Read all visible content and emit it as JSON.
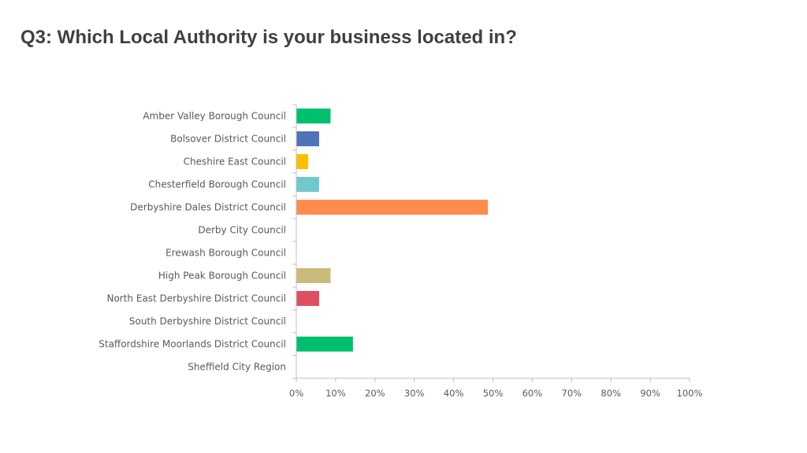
{
  "page": {
    "title": "Q3: Which Local Authority is your business located in?"
  },
  "chart_data": {
    "type": "bar",
    "orientation": "horizontal",
    "title": "",
    "xlabel": "",
    "ylabel": "",
    "xlim": [
      0,
      100
    ],
    "grid": false,
    "categories": [
      "Amber Valley Borough Council",
      "Bolsover District Council",
      "Cheshire East Council",
      "Chesterfield Borough Council",
      "Derbyshire Dales District Council",
      "Derby City Council",
      "Erewash Borough Council",
      "High Peak Borough Council",
      "North East Derbyshire District Council",
      "South Derbyshire District Council",
      "Staffordshire Moorlands District Council",
      "Sheffield City Region"
    ],
    "values": [
      8.6,
      5.7,
      2.9,
      5.7,
      48.6,
      0,
      0,
      8.6,
      5.7,
      0,
      14.3,
      0
    ],
    "colors": [
      "#00c070",
      "#4f75b8",
      "#ffbf00",
      "#70c8cc",
      "#ff8c4f",
      "#a5a5a5",
      "#a5a5a5",
      "#cabb7a",
      "#de4f62",
      "#a5a5a5",
      "#00c070",
      "#a5a5a5"
    ],
    "ticks": [
      "0%",
      "10%",
      "20%",
      "30%",
      "40%",
      "50%",
      "60%",
      "70%",
      "80%",
      "90%",
      "100%"
    ],
    "axis_color": "#bfbfbf"
  }
}
